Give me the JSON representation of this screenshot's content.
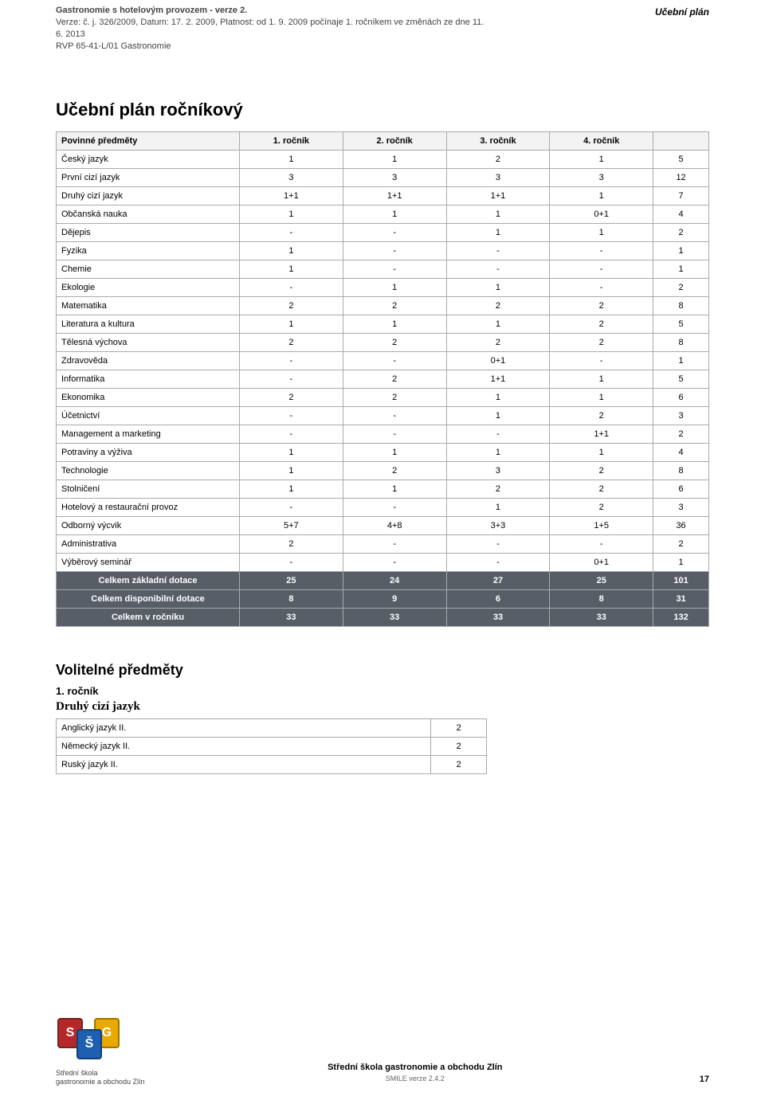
{
  "header": {
    "title": "Gastronomie s hotelovým provozem  - verze 2.",
    "line1": "Verze: č. j. 326/2009, Datum: 17. 2. 2009, Platnost: od 1. 9. 2009 počínaje 1. ročníkem ve změnách ze dne 11. 6. 2013",
    "line2": "RVP 65-41-L/01 Gastronomie",
    "right_label": "Učební plán"
  },
  "plan": {
    "title": "Učební plán ročníkový",
    "subtitle": "Povinné předměty",
    "columns": [
      "1. ročník",
      "2. ročník",
      "3. ročník",
      "4. ročník",
      ""
    ],
    "rows": [
      {
        "subject": "Český jazyk",
        "cells": [
          "1",
          "1",
          "2",
          "1",
          "5"
        ]
      },
      {
        "subject": "První cizí jazyk",
        "cells": [
          "3",
          "3",
          "3",
          "3",
          "12"
        ]
      },
      {
        "subject": "Druhý cizí jazyk",
        "cells": [
          "1+1",
          "1+1",
          "1+1",
          "1",
          "7"
        ]
      },
      {
        "subject": "Občanská nauka",
        "cells": [
          "1",
          "1",
          "1",
          "0+1",
          "4"
        ]
      },
      {
        "subject": "Dějepis",
        "cells": [
          "-",
          "-",
          "1",
          "1",
          "2"
        ]
      },
      {
        "subject": "Fyzika",
        "cells": [
          "1",
          "-",
          "-",
          "-",
          "1"
        ]
      },
      {
        "subject": "Chemie",
        "cells": [
          "1",
          "-",
          "-",
          "-",
          "1"
        ]
      },
      {
        "subject": "Ekologie",
        "cells": [
          "-",
          "1",
          "1",
          "-",
          "2"
        ]
      },
      {
        "subject": "Matematika",
        "cells": [
          "2",
          "2",
          "2",
          "2",
          "8"
        ]
      },
      {
        "subject": "Literatura a kultura",
        "cells": [
          "1",
          "1",
          "1",
          "2",
          "5"
        ]
      },
      {
        "subject": "Tělesná výchova",
        "cells": [
          "2",
          "2",
          "2",
          "2",
          "8"
        ]
      },
      {
        "subject": "Zdravověda",
        "cells": [
          "-",
          "-",
          "0+1",
          "-",
          "1"
        ]
      },
      {
        "subject": "Informatika",
        "cells": [
          "-",
          "2",
          "1+1",
          "1",
          "5"
        ]
      },
      {
        "subject": "Ekonomika",
        "cells": [
          "2",
          "2",
          "1",
          "1",
          "6"
        ]
      },
      {
        "subject": "Účetnictví",
        "cells": [
          "-",
          "-",
          "1",
          "2",
          "3"
        ]
      },
      {
        "subject": "Management a marketing",
        "cells": [
          "-",
          "-",
          "-",
          "1+1",
          "2"
        ]
      },
      {
        "subject": "Potraviny a výživa",
        "cells": [
          "1",
          "1",
          "1",
          "1",
          "4"
        ]
      },
      {
        "subject": "Technologie",
        "cells": [
          "1",
          "2",
          "3",
          "2",
          "8"
        ]
      },
      {
        "subject": "Stolničení",
        "cells": [
          "1",
          "1",
          "2",
          "2",
          "6"
        ]
      },
      {
        "subject": "Hotelový a restaurační provoz",
        "cells": [
          "-",
          "-",
          "1",
          "2",
          "3"
        ]
      },
      {
        "subject": "Odborný výcvik",
        "cells": [
          "5+7",
          "4+8",
          "3+3",
          "1+5",
          "36"
        ]
      },
      {
        "subject": "Administrativa",
        "cells": [
          "2",
          "-",
          "-",
          "-",
          "2"
        ]
      },
      {
        "subject": "Výběrový seminář",
        "cells": [
          "-",
          "-",
          "-",
          "0+1",
          "1"
        ]
      }
    ],
    "totals": [
      {
        "label": "Celkem základní dotace",
        "cells": [
          "25",
          "24",
          "27",
          "25",
          "101"
        ]
      },
      {
        "label": "Celkem disponibilní dotace",
        "cells": [
          "8",
          "9",
          "6",
          "8",
          "31"
        ]
      },
      {
        "label": "Celkem v ročníku",
        "cells": [
          "33",
          "33",
          "33",
          "33",
          "132"
        ]
      }
    ]
  },
  "optional": {
    "title": "Volitelné předměty",
    "year": "1. ročník",
    "subject_group": "Druhý cizí jazyk",
    "rows": [
      {
        "name": "Anglický jazyk II.",
        "val": "2"
      },
      {
        "name": "Německý jazyk II.",
        "val": "2"
      },
      {
        "name": "Ruský jazyk II.",
        "val": "2"
      }
    ]
  },
  "footer": {
    "logo_text_line1": "Střední škola",
    "logo_text_line2": "gastronomie a obchodu Zlín",
    "school": "Střední škola gastronomie a obchodu Zlín",
    "version": "SMILE verze 2.4.2",
    "page": "17"
  }
}
